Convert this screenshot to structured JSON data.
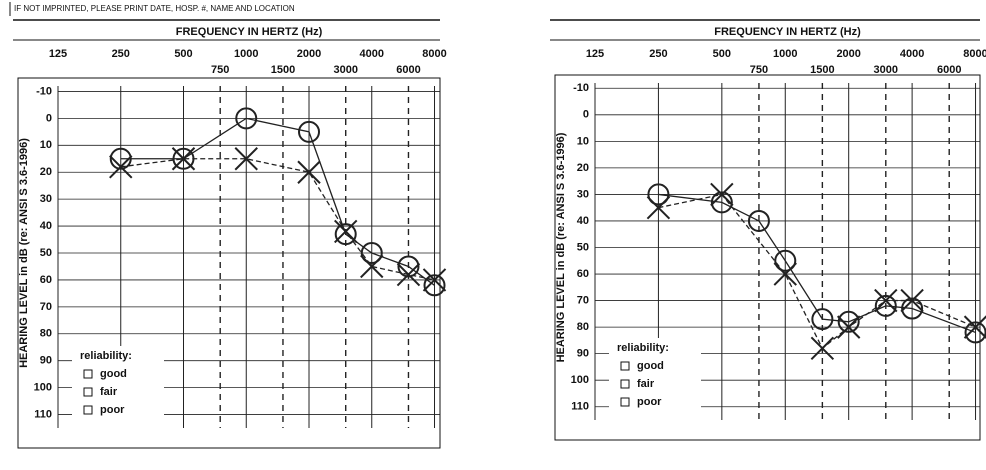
{
  "chart_data": [
    {
      "type": "audiogram",
      "note": "IF NOT IMPRINTED, PLEASE PRINT DATE, HOSP. #, NAME AND LOCATION",
      "title": "FREQUENCY IN HERTZ (Hz)",
      "y_label": "HEARING LEVEL in dB (re: ANSI S 3.6-1996)",
      "xlog": true,
      "xlim": [
        125,
        8500
      ],
      "xticks": [
        125,
        250,
        500,
        1000,
        2000,
        4000,
        8000
      ],
      "minor_xticks": [
        750,
        1500,
        3000,
        6000
      ],
      "ylim": [
        -15,
        115
      ],
      "y_inverted": true,
      "yticks": [
        -10,
        0,
        10,
        20,
        30,
        40,
        50,
        60,
        70,
        80,
        90,
        100,
        110
      ],
      "series": [
        {
          "marker": "circle",
          "color": "#222222",
          "x": [
            250,
            500,
            1000,
            2000,
            3000,
            4000,
            6000,
            8000
          ],
          "values": [
            15,
            15,
            0,
            5,
            43,
            50,
            55,
            62
          ]
        },
        {
          "marker": "cross",
          "color": "#222222",
          "x": [
            250,
            500,
            1000,
            2000,
            3000,
            4000,
            6000,
            8000
          ],
          "values": [
            18,
            15,
            15,
            20,
            42,
            55,
            58,
            60
          ]
        }
      ],
      "legend": {
        "title": "reliability:",
        "items": [
          "good",
          "fair",
          "poor"
        ]
      }
    },
    {
      "type": "audiogram",
      "title": "FREQUENCY IN HERTZ (Hz)",
      "y_label": "HEARING LEVEL in dB (re: ANSI S 3.6-1996)",
      "xlog": true,
      "xlim": [
        125,
        8400
      ],
      "xticks": [
        125,
        250,
        500,
        1000,
        2000,
        4000,
        8000
      ],
      "minor_xticks": [
        750,
        1500,
        3000,
        6000
      ],
      "ylim": [
        -15,
        115
      ],
      "y_inverted": true,
      "yticks": [
        -10,
        0,
        10,
        20,
        30,
        40,
        50,
        60,
        70,
        80,
        90,
        100,
        110
      ],
      "series": [
        {
          "marker": "circle",
          "color": "#222222",
          "x": [
            250,
            500,
            750,
            1000,
            1500,
            2000,
            3000,
            4000,
            8000
          ],
          "values": [
            30,
            33,
            40,
            55,
            77,
            78,
            72,
            73,
            82
          ]
        },
        {
          "marker": "cross",
          "color": "#222222",
          "x": [
            250,
            500,
            1000,
            1500,
            2000,
            3000,
            4000,
            8000
          ],
          "values": [
            35,
            30,
            60,
            88,
            80,
            70,
            70,
            80
          ]
        }
      ],
      "legend": {
        "title": "reliability:",
        "items": [
          "good",
          "fair",
          "poor"
        ]
      }
    }
  ]
}
